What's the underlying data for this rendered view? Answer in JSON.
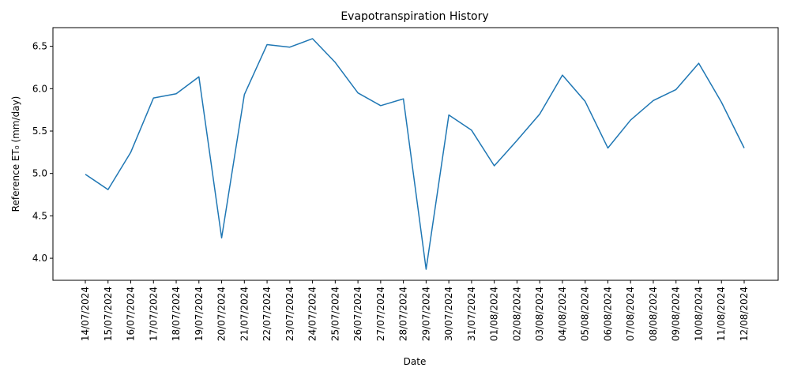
{
  "chart_data": {
    "type": "line",
    "title": "Evapotranspiration History",
    "xlabel": "Date",
    "ylabel": "Reference ET₀ (mm/day)",
    "x": [
      "14/07/2024",
      "15/07/2024",
      "16/07/2024",
      "17/07/2024",
      "18/07/2024",
      "19/07/2024",
      "20/07/2024",
      "21/07/2024",
      "22/07/2024",
      "23/07/2024",
      "24/07/2024",
      "25/07/2024",
      "26/07/2024",
      "27/07/2024",
      "28/07/2024",
      "29/07/2024",
      "30/07/2024",
      "31/07/2024",
      "01/08/2024",
      "02/08/2024",
      "03/08/2024",
      "04/08/2024",
      "05/08/2024",
      "06/08/2024",
      "07/08/2024",
      "08/08/2024",
      "09/08/2024",
      "10/08/2024",
      "11/08/2024",
      "12/08/2024"
    ],
    "series": [
      {
        "values": [
          4.99,
          4.81,
          5.25,
          5.89,
          5.94,
          6.14,
          4.24,
          5.93,
          6.52,
          6.49,
          6.59,
          6.31,
          5.95,
          5.8,
          5.88,
          3.87,
          5.69,
          5.51,
          5.09,
          5.39,
          5.7,
          6.16,
          5.85,
          5.3,
          5.63,
          5.86,
          5.99,
          6.3,
          5.84,
          5.3
        ],
        "color": "#1f77b4"
      }
    ],
    "yticks": [
      4.0,
      4.5,
      5.0,
      5.5,
      6.0,
      6.5
    ],
    "ylim": [
      3.74,
      6.72
    ],
    "grid": false,
    "legend": "none"
  }
}
